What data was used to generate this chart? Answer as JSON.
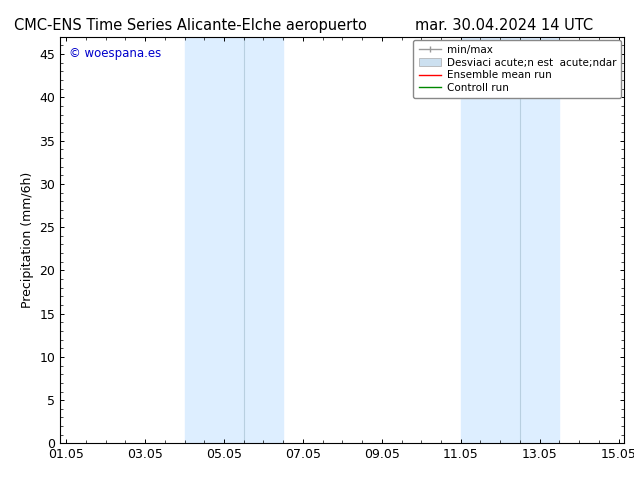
{
  "title": "CMC-ENS Time Series Alicante-Elche aeropuerto",
  "title_right": "mar. 30.04.2024 14 UTC",
  "ylabel": "Precipitation (mm/6h)",
  "watermark": "© woespana.es",
  "watermark_color": "#0000cc",
  "ylim": [
    0,
    47
  ],
  "yticks": [
    0,
    5,
    10,
    15,
    20,
    25,
    30,
    35,
    40,
    45
  ],
  "xtick_labels": [
    "01.05",
    "03.05",
    "05.05",
    "07.05",
    "09.05",
    "11.05",
    "13.05",
    "15.05"
  ],
  "xmin": 0,
  "xmax": 14,
  "shaded1_xmin": 3.0,
  "shaded1_xmid": 4.5,
  "shaded1_xmax": 5.5,
  "shaded2_xmin": 10.0,
  "shaded2_xmid": 11.5,
  "shaded2_xmax": 12.5,
  "shaded_color": "#ddeeff",
  "shaded_line_color": "#b8cfe0",
  "legend_label1": "min/max",
  "legend_label2": "Desviaci acute;n est  acute;ndar",
  "legend_label3": "Ensemble mean run",
  "legend_label4": "Controll run",
  "legend_color1": "#999999",
  "legend_color2": "#cce0f0",
  "legend_color3": "#ff0000",
  "legend_color4": "#008800",
  "background_color": "#ffffff",
  "font_size": 9,
  "title_font_size": 10.5
}
